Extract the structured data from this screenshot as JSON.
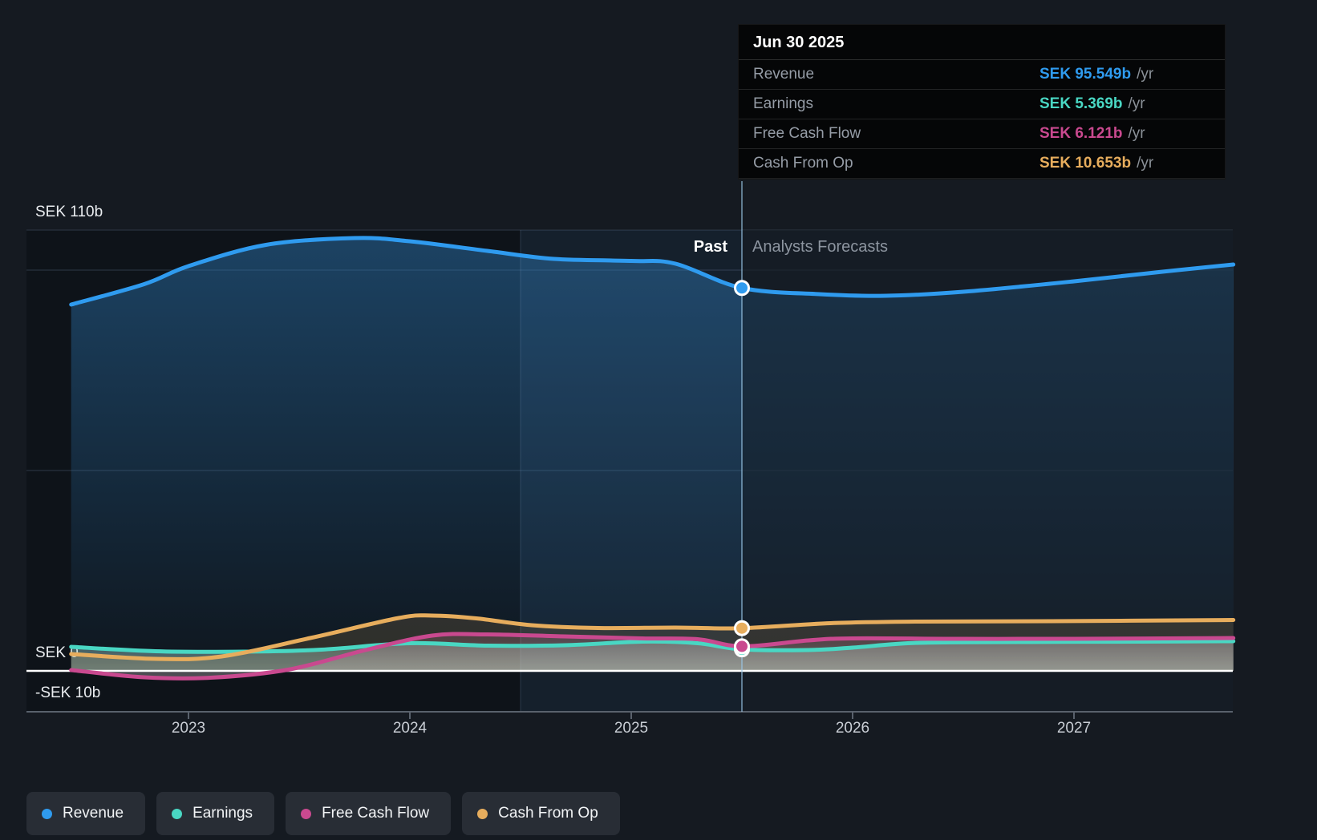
{
  "colors": {
    "revenue": "#2f9bef",
    "earnings": "#49d7c3",
    "free_cash_flow": "#c9498f",
    "cash_from_op": "#e7ad5d",
    "background": "#151a21",
    "past_plot_bg": "#0e1319",
    "forecast_plot_bg": "#18202b",
    "tooltip_bg": "#050607",
    "zero_line": "#ffffff",
    "axis_line": "#59616c",
    "gridline": "#29323e"
  },
  "tooltip": {
    "date": "Jun 30 2025",
    "rows": [
      {
        "key": "revenue",
        "label": "Revenue",
        "value": "SEK 95.549b",
        "suffix": "/yr",
        "color_key": "revenue"
      },
      {
        "key": "earnings",
        "label": "Earnings",
        "value": "SEK 5.369b",
        "suffix": "/yr",
        "color_key": "earnings"
      },
      {
        "key": "free-cash-flow",
        "label": "Free Cash Flow",
        "value": "SEK 6.121b",
        "suffix": "/yr",
        "color_key": "free_cash_flow"
      },
      {
        "key": "cash-from-op",
        "label": "Cash From Op",
        "value": "SEK 10.653b",
        "suffix": "/yr",
        "color_key": "cash_from_op"
      }
    ]
  },
  "sections": {
    "past_label": "Past",
    "forecasts_label": "Analysts Forecasts"
  },
  "legend": [
    {
      "key": "revenue",
      "label": "Revenue",
      "color_key": "revenue"
    },
    {
      "key": "earnings",
      "label": "Earnings",
      "color_key": "earnings"
    },
    {
      "key": "free-cash-flow",
      "label": "Free Cash Flow",
      "color_key": "free_cash_flow"
    },
    {
      "key": "cash-from-op",
      "label": "Cash From Op",
      "color_key": "cash_from_op"
    }
  ],
  "chart_data": {
    "type": "area",
    "unit": "SEK billions per year",
    "x_domain": [
      2022.47,
      2027.72
    ],
    "divider_x": 2025.5,
    "divider_date": "Jun 30 2025",
    "highlight_range": [
      2024.5,
      2025.5
    ],
    "ylim": [
      -10,
      110
    ],
    "y_gridlines": [
      110,
      100,
      50,
      0,
      -10
    ],
    "y_axis_labels": [
      {
        "value": 110,
        "label": "SEK 110b"
      },
      {
        "value": 0,
        "label": "SEK 0"
      },
      {
        "value": -10,
        "label": "-SEK 10b"
      }
    ],
    "x_ticks": [
      {
        "value": 2023,
        "label": "2023"
      },
      {
        "value": 2024,
        "label": "2024"
      },
      {
        "value": 2025,
        "label": "2025"
      },
      {
        "value": 2026,
        "label": "2026"
      },
      {
        "value": 2027,
        "label": "2027"
      }
    ],
    "series": [
      {
        "name": "Revenue",
        "color_key": "revenue",
        "value_at_divider": 95.549,
        "points": [
          [
            2022.47,
            91.4
          ],
          [
            2022.8,
            96.5
          ],
          [
            2023.0,
            101.0
          ],
          [
            2023.35,
            106.3
          ],
          [
            2023.75,
            108.0
          ],
          [
            2024.0,
            107.2
          ],
          [
            2024.35,
            104.8
          ],
          [
            2024.65,
            102.8
          ],
          [
            2025.0,
            102.3
          ],
          [
            2025.2,
            101.6
          ],
          [
            2025.5,
            95.549
          ],
          [
            2025.85,
            94.0
          ],
          [
            2026.15,
            93.6
          ],
          [
            2026.5,
            94.6
          ],
          [
            2027.0,
            97.2
          ],
          [
            2027.4,
            99.6
          ],
          [
            2027.72,
            101.4
          ]
        ]
      },
      {
        "name": "Earnings",
        "color_key": "earnings",
        "value_at_divider": 5.369,
        "points": [
          [
            2022.47,
            6.0
          ],
          [
            2022.85,
            4.9
          ],
          [
            2023.25,
            4.8
          ],
          [
            2023.6,
            5.3
          ],
          [
            2024.0,
            6.9
          ],
          [
            2024.35,
            6.3
          ],
          [
            2024.7,
            6.4
          ],
          [
            2025.05,
            7.3
          ],
          [
            2025.3,
            6.9
          ],
          [
            2025.5,
            5.369
          ],
          [
            2025.8,
            5.2
          ],
          [
            2026.0,
            5.8
          ],
          [
            2026.3,
            7.0
          ],
          [
            2026.8,
            7.2
          ],
          [
            2027.3,
            7.3
          ],
          [
            2027.72,
            7.4
          ]
        ]
      },
      {
        "name": "Free Cash Flow",
        "color_key": "free_cash_flow",
        "value_at_divider": 6.121,
        "points": [
          [
            2022.47,
            0.2
          ],
          [
            2022.8,
            -1.6
          ],
          [
            2023.1,
            -1.7
          ],
          [
            2023.45,
            0.3
          ],
          [
            2023.8,
            5.2
          ],
          [
            2024.1,
            8.8
          ],
          [
            2024.35,
            9.1
          ],
          [
            2024.7,
            8.6
          ],
          [
            2025.05,
            8.1
          ],
          [
            2025.3,
            7.9
          ],
          [
            2025.5,
            6.121
          ],
          [
            2025.8,
            7.6
          ],
          [
            2026.0,
            8.1
          ],
          [
            2026.5,
            8.0
          ],
          [
            2027.0,
            8.0
          ],
          [
            2027.72,
            8.2
          ]
        ]
      },
      {
        "name": "Cash From Op",
        "color_key": "cash_from_op",
        "value_at_divider": 10.653,
        "points": [
          [
            2022.47,
            4.2
          ],
          [
            2022.85,
            3.0
          ],
          [
            2023.15,
            3.6
          ],
          [
            2023.55,
            8.2
          ],
          [
            2023.95,
            13.2
          ],
          [
            2024.1,
            13.8
          ],
          [
            2024.3,
            13.1
          ],
          [
            2024.55,
            11.4
          ],
          [
            2024.85,
            10.7
          ],
          [
            2025.2,
            10.8
          ],
          [
            2025.5,
            10.653
          ],
          [
            2025.9,
            11.9
          ],
          [
            2026.3,
            12.3
          ],
          [
            2026.9,
            12.4
          ],
          [
            2027.72,
            12.7
          ]
        ]
      }
    ]
  }
}
